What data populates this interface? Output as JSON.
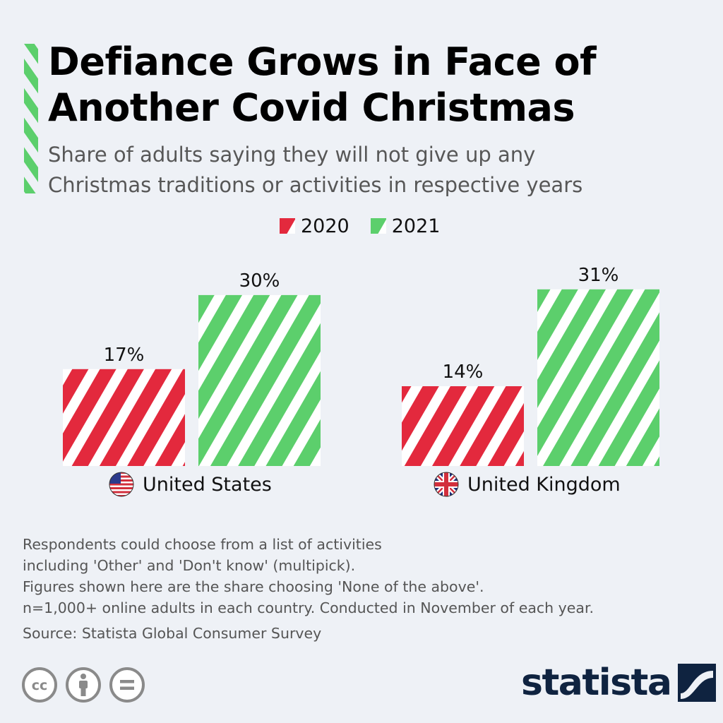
{
  "title_line1": "Defiance Grows in Face of",
  "title_line2": "Another Covid Christmas",
  "subtitle_line1": "Share of adults saying they will not give up any",
  "subtitle_line2": "Christmas traditions or activities in respective years",
  "colors": {
    "red": "#e3293d",
    "green": "#5ccf6c",
    "background": "#eef1f6",
    "brand": "#0f2340"
  },
  "chart_data": {
    "type": "bar",
    "categories": [
      "United States",
      "United Kingdom"
    ],
    "series": [
      {
        "name": "2020",
        "values": [
          17,
          14
        ],
        "color": "#e3293d"
      },
      {
        "name": "2021",
        "values": [
          30,
          31
        ],
        "color": "#5ccf6c"
      }
    ],
    "data_labels": [
      [
        "17%",
        "14%"
      ],
      [
        "30%",
        "31%"
      ]
    ],
    "unit": "%",
    "legend": "top-center",
    "grid": false,
    "category_icons": [
      "us-flag-icon",
      "uk-flag-icon"
    ]
  },
  "notes": [
    "Respondents could choose from a list of activities",
    "including 'Other' and 'Don't know' (multipick).",
    "Figures shown here are the share choosing 'None of the above'.",
    "n=1,000+ online adults in each country. Conducted in November of each year."
  ],
  "source": "Source: Statista Global Consumer Survey",
  "license_icons": [
    "cc-icon",
    "attribution-icon",
    "no-derivatives-icon"
  ],
  "brand": "statista"
}
